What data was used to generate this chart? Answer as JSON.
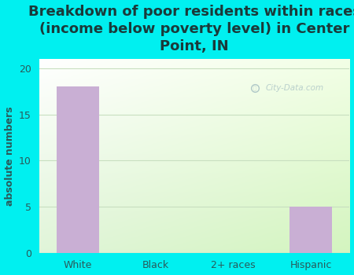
{
  "title": "Breakdown of poor residents within races\n(income below poverty level) in Center\nPoint, IN",
  "categories": [
    "White",
    "Black",
    "2+ races",
    "Hispanic"
  ],
  "values": [
    18,
    0,
    0,
    5
  ],
  "bar_color": "#c9afd4",
  "ylabel": "absolute numbers",
  "ylim": [
    0,
    21
  ],
  "yticks": [
    0,
    5,
    10,
    15,
    20
  ],
  "background_outer": "#00f0f0",
  "grid_color": "#c8dfc0",
  "title_fontsize": 13,
  "axis_label_fontsize": 9,
  "tick_fontsize": 9,
  "title_color": "#1a3a3a",
  "watermark": "City-Data.com",
  "bg_colors_lr": [
    "#f5fff0",
    "#c8e8c0"
  ],
  "bg_colors_tb": [
    "#ffffff",
    "#d8ecd0"
  ]
}
